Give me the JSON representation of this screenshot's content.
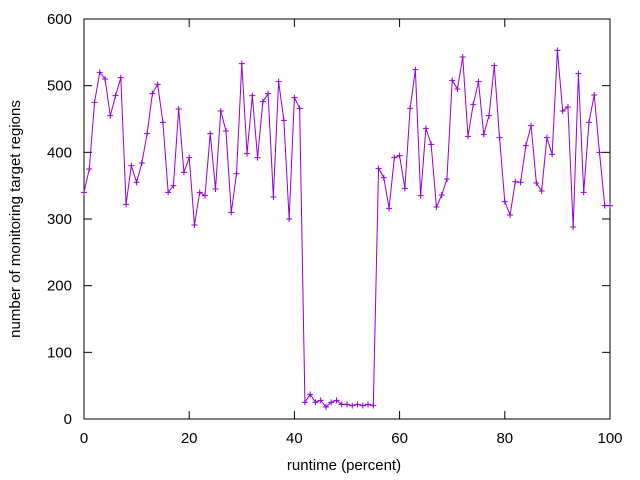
{
  "chart_data": {
    "type": "line",
    "title": "",
    "xlabel": "runtime (percent)",
    "ylabel": "number of monitoring target regions",
    "xlim": [
      0,
      100
    ],
    "ylim": [
      0,
      600
    ],
    "xticks": [
      0,
      20,
      40,
      60,
      80,
      100
    ],
    "yticks": [
      0,
      100,
      200,
      300,
      400,
      500,
      600
    ],
    "grid": false,
    "legend": "none",
    "marker": "plus",
    "colors": {
      "series": "#9400d3",
      "axis": "#000000",
      "background": "#ffffff"
    },
    "series": [
      {
        "name": "",
        "x": [
          0,
          1,
          2,
          3,
          4,
          5,
          6,
          7,
          8,
          9,
          10,
          11,
          12,
          13,
          14,
          15,
          16,
          17,
          18,
          19,
          20,
          21,
          22,
          23,
          24,
          25,
          26,
          27,
          28,
          29,
          30,
          31,
          32,
          33,
          34,
          35,
          36,
          37,
          38,
          39,
          40,
          41,
          42,
          43,
          44,
          45,
          46,
          47,
          48,
          49,
          50,
          51,
          52,
          53,
          54,
          55,
          56,
          57,
          58,
          59,
          60,
          61,
          62,
          63,
          64,
          65,
          66,
          67,
          68,
          69,
          70,
          71,
          72,
          73,
          74,
          75,
          76,
          77,
          78,
          79,
          80,
          81,
          82,
          83,
          84,
          85,
          86,
          87,
          88,
          89,
          90,
          91,
          92,
          93,
          94,
          95,
          96,
          97,
          98,
          99,
          100
        ],
        "y": [
          340,
          375,
          475,
          520,
          510,
          455,
          485,
          512,
          322,
          380,
          355,
          384,
          428,
          488,
          502,
          445,
          340,
          350,
          465,
          370,
          392,
          291,
          340,
          335,
          428,
          345,
          462,
          432,
          310,
          368,
          533,
          398,
          485,
          392,
          476,
          488,
          333,
          506,
          448,
          300,
          482,
          466,
          25,
          37,
          25,
          28,
          18,
          25,
          28,
          22,
          22,
          20,
          22,
          20,
          22,
          20,
          376,
          362,
          316,
          392,
          395,
          346,
          466,
          524,
          335,
          436,
          412,
          318,
          336,
          360,
          508,
          495,
          543,
          424,
          472,
          506,
          427,
          455,
          530,
          422,
          326,
          306,
          356,
          355,
          410,
          440,
          354,
          342,
          422,
          397,
          553,
          462,
          468,
          288,
          518,
          340,
          445,
          486,
          400,
          320,
          320
        ]
      }
    ]
  }
}
